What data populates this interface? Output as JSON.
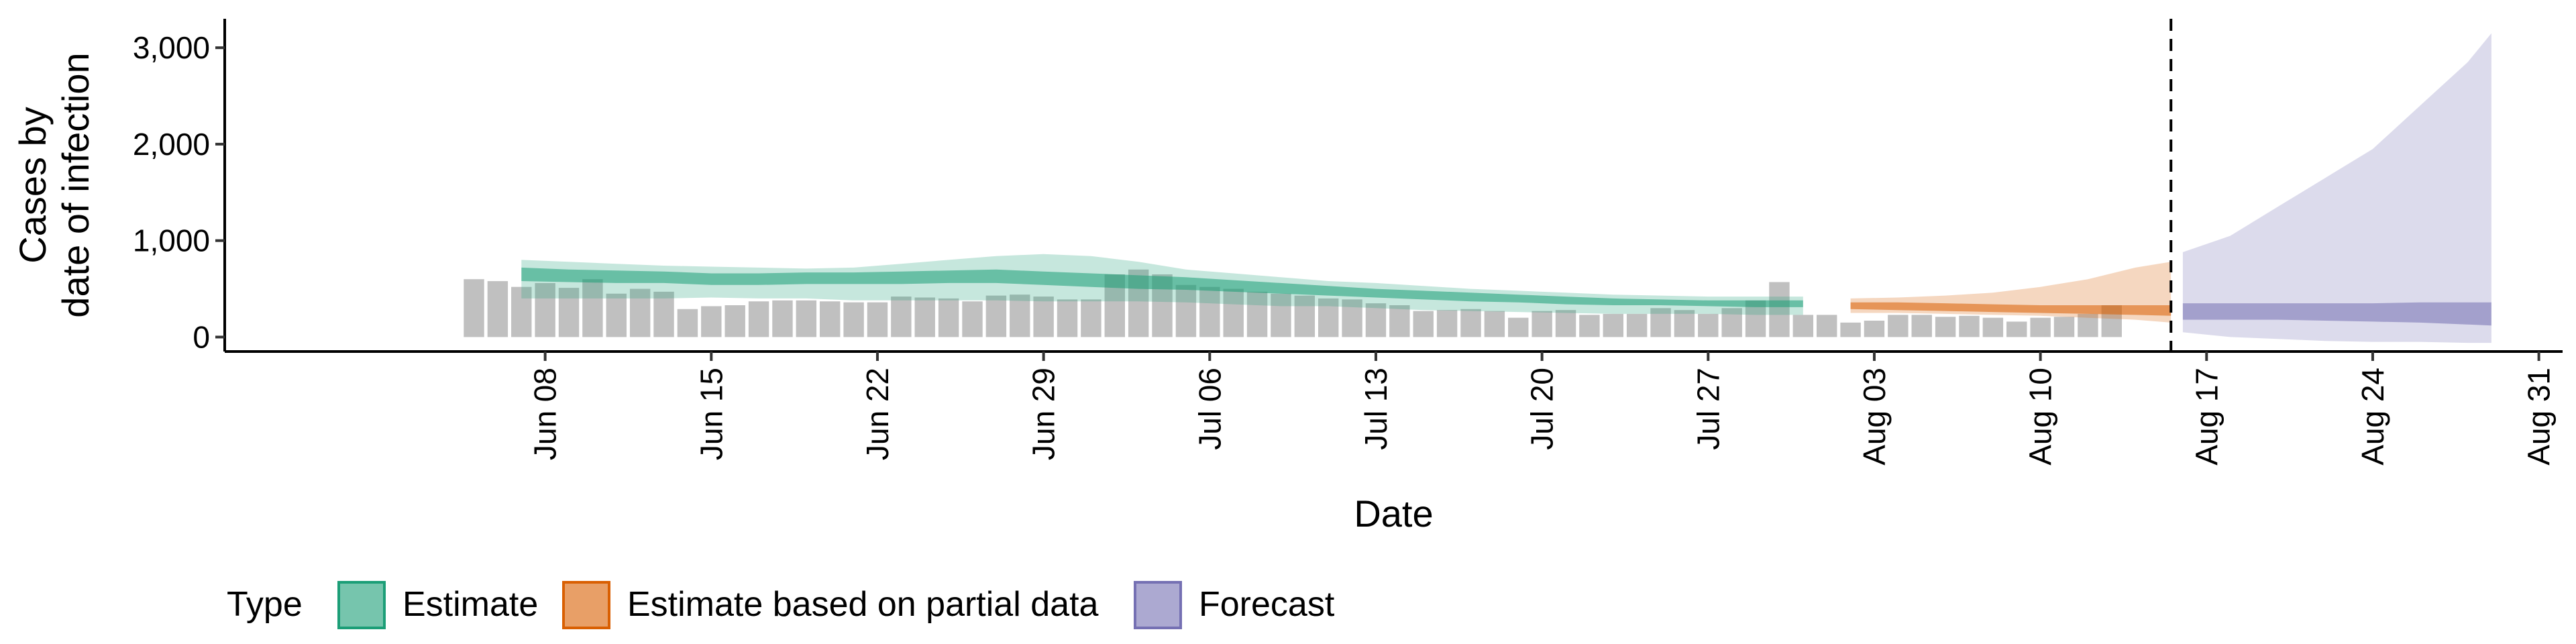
{
  "chart_data": {
    "type": "area",
    "xlabel": "Date",
    "ylabel_lines": [
      "Cases by",
      "date of infection"
    ],
    "ylim": [
      -150,
      3300
    ],
    "yticks": [
      0,
      1000,
      2000,
      3000
    ],
    "ytick_labels": [
      "0",
      "1,000",
      "2,000",
      "3,000"
    ],
    "x_start_date": "2020-06-01",
    "xlim_days": [
      -6.5,
      92
    ],
    "xticks_days": [
      7,
      14,
      21,
      28,
      35,
      42,
      49,
      56,
      63,
      70,
      77,
      84,
      91
    ],
    "xtick_labels": [
      "Jun 08",
      "Jun 15",
      "Jun 22",
      "Jun 29",
      "Jul 06",
      "Jul 13",
      "Jul 20",
      "Jul 27",
      "Aug 03",
      "Aug 10",
      "Aug 17",
      "Aug 24",
      "Aug 31"
    ],
    "vline_day": 75.5,
    "grid": false,
    "legend_position": "bottom",
    "legend_title": "Type",
    "reported_cases": {
      "start_day": 4,
      "values": [
        600,
        580,
        520,
        560,
        510,
        600,
        450,
        500,
        470,
        290,
        320,
        330,
        370,
        380,
        380,
        370,
        360,
        360,
        420,
        410,
        400,
        370,
        430,
        440,
        420,
        390,
        390,
        650,
        700,
        650,
        540,
        520,
        500,
        470,
        450,
        430,
        400,
        390,
        350,
        330,
        270,
        280,
        290,
        270,
        200,
        270,
        280,
        230,
        240,
        240,
        300,
        280,
        240,
        300,
        380,
        570,
        230,
        230,
        150,
        170,
        230,
        230,
        210,
        220,
        200,
        160,
        200,
        210,
        240,
        330
      ]
    },
    "series": [
      {
        "name": "Estimate",
        "color": "#1b9e77",
        "x_days": [
          6,
          8,
          10,
          12,
          14,
          16,
          18,
          20,
          22,
          24,
          26,
          28,
          30,
          32,
          34,
          36,
          38,
          40,
          42,
          44,
          46,
          48,
          50,
          52,
          54,
          56,
          58,
          60
        ],
        "lower90": [
          400,
          400,
          400,
          400,
          410,
          400,
          400,
          380,
          380,
          380,
          380,
          370,
          370,
          370,
          360,
          340,
          320,
          320,
          300,
          280,
          270,
          260,
          250,
          240,
          240,
          240,
          230,
          230
        ],
        "upper90": [
          800,
          780,
          760,
          740,
          730,
          720,
          710,
          720,
          760,
          800,
          840,
          860,
          840,
          780,
          700,
          660,
          620,
          580,
          560,
          530,
          500,
          480,
          460,
          440,
          430,
          420,
          420,
          420
        ],
        "lower50": [
          580,
          570,
          560,
          560,
          540,
          540,
          550,
          550,
          550,
          560,
          560,
          540,
          520,
          500,
          490,
          470,
          450,
          430,
          410,
          390,
          370,
          360,
          340,
          330,
          330,
          320,
          310,
          310
        ],
        "upper50": [
          720,
          700,
          690,
          680,
          660,
          660,
          670,
          670,
          680,
          690,
          700,
          680,
          660,
          640,
          620,
          590,
          560,
          530,
          500,
          480,
          460,
          440,
          420,
          400,
          390,
          380,
          380,
          380
        ]
      },
      {
        "name": "Estimate based on partial data",
        "color": "#d95f02",
        "x_days": [
          62,
          64,
          66,
          68,
          70,
          72,
          74,
          75.5
        ],
        "lower90": [
          250,
          250,
          240,
          230,
          220,
          200,
          180,
          150
        ],
        "upper90": [
          400,
          410,
          430,
          460,
          520,
          600,
          720,
          780
        ],
        "lower50": [
          290,
          280,
          270,
          260,
          250,
          240,
          230,
          220
        ],
        "upper50": [
          360,
          360,
          350,
          340,
          330,
          330,
          330,
          330
        ]
      },
      {
        "name": "Forecast",
        "color": "#7570b3",
        "x_days": [
          76,
          78,
          80,
          82,
          84,
          86,
          88,
          89
        ],
        "lower90": [
          50,
          0,
          -20,
          -40,
          -50,
          -50,
          -60,
          -60
        ],
        "upper90": [
          880,
          1050,
          1350,
          1650,
          1950,
          2400,
          2850,
          3150
        ],
        "lower50": [
          180,
          180,
          180,
          170,
          160,
          150,
          130,
          120
        ],
        "upper50": [
          350,
          350,
          350,
          350,
          350,
          360,
          360,
          360
        ]
      }
    ]
  }
}
